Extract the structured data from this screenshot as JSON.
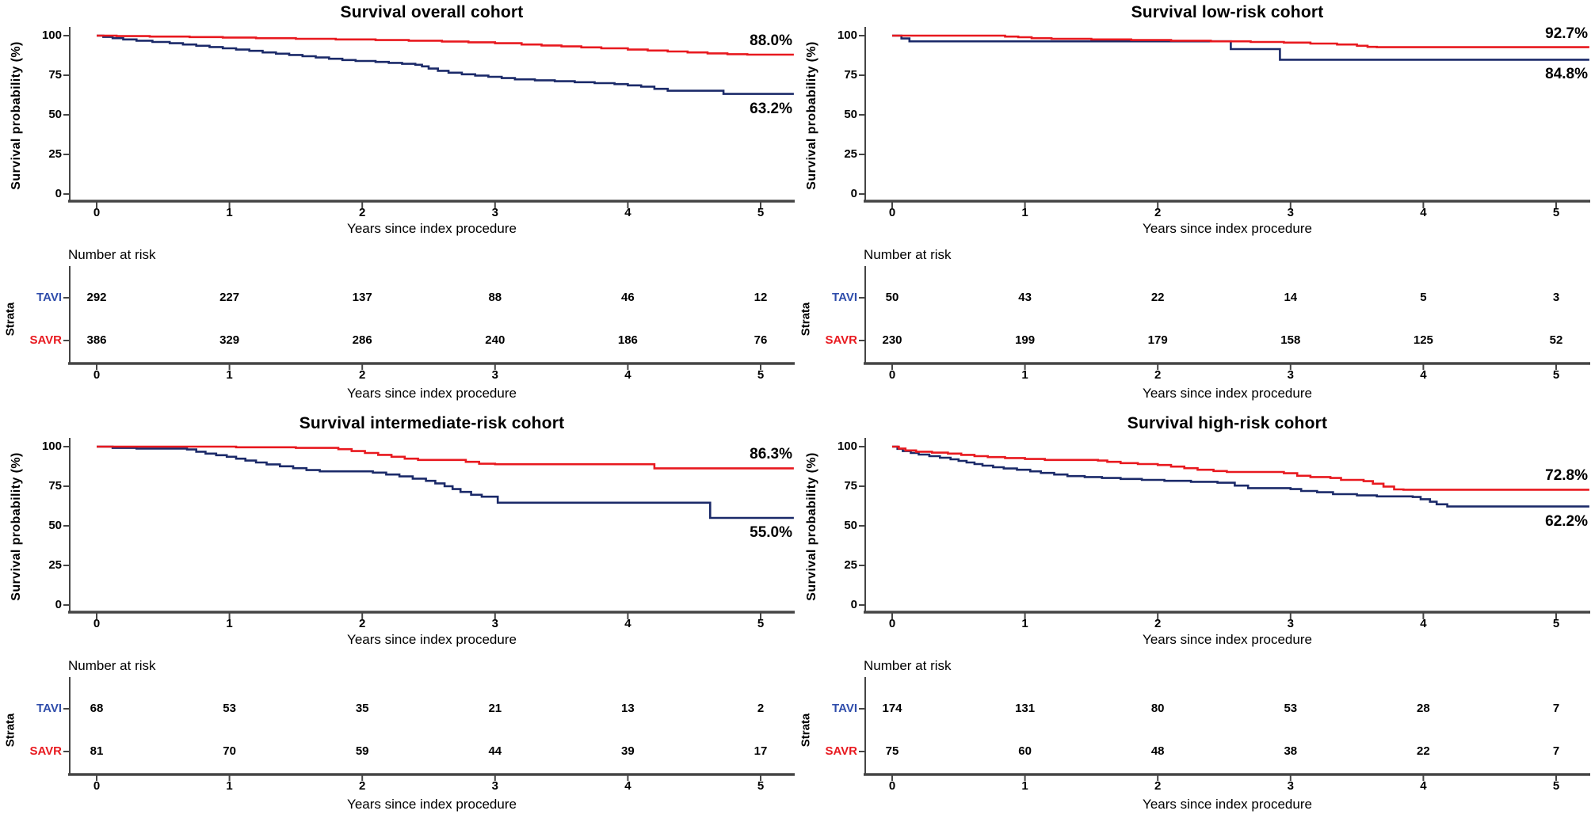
{
  "figure": {
    "background": "#ffffff"
  },
  "colors": {
    "savr": "#e8191f",
    "tavi_curve": "#1b2a69",
    "tavi_label": "#2f4dab",
    "axis": "#454545",
    "text": "#000000"
  },
  "axes": {
    "xlabel": "Years since index procedure",
    "ylabel": "Survival probability (%)",
    "x_ticks": [
      0,
      1,
      2,
      3,
      4,
      5
    ],
    "y_ticks": [
      0,
      25,
      50,
      75,
      100
    ],
    "xlim": [
      0,
      5.25
    ],
    "ylim": [
      0,
      100
    ],
    "grid": false
  },
  "risk_table": {
    "header": "Number at risk",
    "strata_label": "Strata"
  },
  "series_labels": {
    "tavi": "TAVI",
    "savr": "SAVR"
  },
  "chart_data": [
    {
      "type": "line",
      "title": "Survival overall cohort",
      "xlabel": "Years since index procedure",
      "ylabel": "Survival probability (%)",
      "end_labels": {
        "savr": "88.0%",
        "tavi": "63.2%"
      },
      "series": [
        {
          "name": "TAVI",
          "color_key": "tavi_curve",
          "points": [
            [
              0,
              100
            ],
            [
              0.05,
              99.2
            ],
            [
              0.12,
              98.4
            ],
            [
              0.2,
              97.6
            ],
            [
              0.3,
              96.8
            ],
            [
              0.42,
              96
            ],
            [
              0.55,
              95.2
            ],
            [
              0.65,
              94.4
            ],
            [
              0.75,
              93.6
            ],
            [
              0.85,
              92.8
            ],
            [
              0.95,
              92
            ],
            [
              1.05,
              91.2
            ],
            [
              1.15,
              90.4
            ],
            [
              1.25,
              89.4
            ],
            [
              1.35,
              88.6
            ],
            [
              1.45,
              87.8
            ],
            [
              1.55,
              87
            ],
            [
              1.65,
              86.2
            ],
            [
              1.75,
              85.4
            ],
            [
              1.85,
              84.6
            ],
            [
              1.95,
              84
            ],
            [
              2.1,
              83.4
            ],
            [
              2.2,
              82.8
            ],
            [
              2.3,
              82.2
            ],
            [
              2.4,
              81.6
            ],
            [
              2.45,
              80.6
            ],
            [
              2.5,
              79.2
            ],
            [
              2.57,
              77.8
            ],
            [
              2.65,
              76.6
            ],
            [
              2.75,
              75.6
            ],
            [
              2.85,
              74.8
            ],
            [
              2.95,
              74
            ],
            [
              3.05,
              73.2
            ],
            [
              3.15,
              72.4
            ],
            [
              3.3,
              71.8
            ],
            [
              3.45,
              71.2
            ],
            [
              3.6,
              70.6
            ],
            [
              3.75,
              70
            ],
            [
              3.9,
              69.4
            ],
            [
              4,
              68.6
            ],
            [
              4.1,
              67.8
            ],
            [
              4.2,
              66.4
            ],
            [
              4.3,
              65.2
            ],
            [
              4.72,
              63.2
            ],
            [
              5.25,
              63.2
            ]
          ]
        },
        {
          "name": "SAVR",
          "color_key": "savr",
          "points": [
            [
              0,
              100
            ],
            [
              0.15,
              99.7
            ],
            [
              0.4,
              99.4
            ],
            [
              0.7,
              99.1
            ],
            [
              0.95,
              98.8
            ],
            [
              1.2,
              98.4
            ],
            [
              1.5,
              98
            ],
            [
              1.8,
              97.6
            ],
            [
              2.1,
              97.2
            ],
            [
              2.35,
              96.8
            ],
            [
              2.6,
              96.3
            ],
            [
              2.8,
              95.8
            ],
            [
              3,
              95.2
            ],
            [
              3.2,
              94.4
            ],
            [
              3.35,
              93.8
            ],
            [
              3.5,
              93.2
            ],
            [
              3.65,
              92.6
            ],
            [
              3.8,
              92
            ],
            [
              4,
              91.2
            ],
            [
              4.15,
              90.6
            ],
            [
              4.3,
              90
            ],
            [
              4.45,
              89.4
            ],
            [
              4.6,
              88.8
            ],
            [
              4.75,
              88.3
            ],
            [
              4.9,
              88
            ],
            [
              5.25,
              88
            ]
          ]
        }
      ],
      "risk": [
        {
          "name": "TAVI",
          "values": [
            292,
            227,
            137,
            88,
            46,
            12
          ]
        },
        {
          "name": "SAVR",
          "values": [
            386,
            329,
            286,
            240,
            186,
            76
          ]
        }
      ]
    },
    {
      "type": "line",
      "title": "Survival low-risk cohort",
      "xlabel": "Years since index procedure",
      "ylabel": "Survival probability (%)",
      "end_labels": {
        "savr": "92.7%",
        "tavi": "84.8%"
      },
      "series": [
        {
          "name": "TAVI",
          "color_key": "tavi_curve",
          "points": [
            [
              0,
              100
            ],
            [
              0.07,
              98.2
            ],
            [
              0.13,
              96.4
            ],
            [
              2.55,
              91.5
            ],
            [
              2.92,
              84.8
            ],
            [
              5.25,
              84.8
            ]
          ]
        },
        {
          "name": "SAVR",
          "color_key": "savr",
          "points": [
            [
              0,
              100
            ],
            [
              0.78,
              100
            ],
            [
              0.85,
              99.4
            ],
            [
              0.95,
              99
            ],
            [
              1.05,
              98.4
            ],
            [
              1.2,
              98
            ],
            [
              1.5,
              97.6
            ],
            [
              1.8,
              97.2
            ],
            [
              2.1,
              96.8
            ],
            [
              2.4,
              96.4
            ],
            [
              2.7,
              96
            ],
            [
              2.95,
              95.6
            ],
            [
              3.15,
              95
            ],
            [
              3.35,
              94.4
            ],
            [
              3.5,
              93.6
            ],
            [
              3.58,
              92.9
            ],
            [
              3.65,
              92.7
            ],
            [
              5.25,
              92.7
            ]
          ]
        }
      ],
      "risk": [
        {
          "name": "TAVI",
          "values": [
            50,
            43,
            22,
            14,
            5,
            3
          ]
        },
        {
          "name": "SAVR",
          "values": [
            230,
            199,
            179,
            158,
            125,
            52
          ]
        }
      ]
    },
    {
      "type": "line",
      "title": "Survival intermediate-risk cohort",
      "xlabel": "Years since index procedure",
      "ylabel": "Survival probability (%)",
      "end_labels": {
        "savr": "86.3%",
        "tavi": "55.0%"
      },
      "series": [
        {
          "name": "TAVI",
          "color_key": "tavi_curve",
          "points": [
            [
              0,
              100
            ],
            [
              0.12,
              99.2
            ],
            [
              0.3,
              98.8
            ],
            [
              0.68,
              98.2
            ],
            [
              0.75,
              96.8
            ],
            [
              0.82,
              95.6
            ],
            [
              0.9,
              94.6
            ],
            [
              0.98,
              93.6
            ],
            [
              1.05,
              92.4
            ],
            [
              1.12,
              91.2
            ],
            [
              1.2,
              90
            ],
            [
              1.28,
              88.8
            ],
            [
              1.38,
              87.6
            ],
            [
              1.48,
              86.4
            ],
            [
              1.58,
              85.2
            ],
            [
              1.68,
              84.4
            ],
            [
              2.08,
              83.6
            ],
            [
              2.18,
              82.4
            ],
            [
              2.28,
              81.2
            ],
            [
              2.38,
              79.8
            ],
            [
              2.48,
              78.4
            ],
            [
              2.55,
              76.8
            ],
            [
              2.62,
              75
            ],
            [
              2.68,
              73.2
            ],
            [
              2.74,
              71.4
            ],
            [
              2.82,
              69.6
            ],
            [
              2.9,
              68.4
            ],
            [
              3.02,
              64.6
            ],
            [
              4.62,
              55
            ],
            [
              5.25,
              55
            ]
          ]
        },
        {
          "name": "SAVR",
          "color_key": "savr",
          "points": [
            [
              0,
              100
            ],
            [
              1.05,
              99.6
            ],
            [
              1.5,
              99.2
            ],
            [
              1.82,
              98.4
            ],
            [
              1.92,
              97.2
            ],
            [
              2.02,
              96
            ],
            [
              2.12,
              94.8
            ],
            [
              2.22,
              93.6
            ],
            [
              2.32,
              92.4
            ],
            [
              2.42,
              91.6
            ],
            [
              2.78,
              90.4
            ],
            [
              2.88,
              89.2
            ],
            [
              3,
              88.9
            ],
            [
              4.2,
              86.3
            ],
            [
              5.25,
              86.3
            ]
          ]
        }
      ],
      "risk": [
        {
          "name": "TAVI",
          "values": [
            68,
            53,
            35,
            21,
            13,
            2
          ]
        },
        {
          "name": "SAVR",
          "values": [
            81,
            70,
            59,
            44,
            39,
            17
          ]
        }
      ]
    },
    {
      "type": "line",
      "title": "Survival high-risk cohort",
      "xlabel": "Years since index procedure",
      "ylabel": "Survival probability (%)",
      "end_labels": {
        "savr": "72.8%",
        "tavi": "62.2%"
      },
      "series": [
        {
          "name": "TAVI",
          "color_key": "tavi_curve",
          "points": [
            [
              0,
              100
            ],
            [
              0.04,
              98.6
            ],
            [
              0.08,
              97.2
            ],
            [
              0.14,
              96
            ],
            [
              0.2,
              95
            ],
            [
              0.28,
              94
            ],
            [
              0.36,
              93
            ],
            [
              0.44,
              92
            ],
            [
              0.5,
              91
            ],
            [
              0.56,
              90
            ],
            [
              0.62,
              89
            ],
            [
              0.68,
              88
            ],
            [
              0.76,
              87
            ],
            [
              0.84,
              86.2
            ],
            [
              0.94,
              85.4
            ],
            [
              1.04,
              84.4
            ],
            [
              1.12,
              83.4
            ],
            [
              1.22,
              82.4
            ],
            [
              1.32,
              81.4
            ],
            [
              1.45,
              80.8
            ],
            [
              1.58,
              80.2
            ],
            [
              1.72,
              79.6
            ],
            [
              1.88,
              79
            ],
            [
              2.05,
              78.4
            ],
            [
              2.25,
              77.8
            ],
            [
              2.45,
              77.2
            ],
            [
              2.58,
              75.4
            ],
            [
              2.68,
              73.8
            ],
            [
              3,
              73.2
            ],
            [
              3.08,
              72
            ],
            [
              3.2,
              71.2
            ],
            [
              3.32,
              70
            ],
            [
              3.5,
              69.2
            ],
            [
              3.65,
              68.6
            ],
            [
              3.92,
              68.2
            ],
            [
              3.98,
              66.8
            ],
            [
              4.05,
              65.2
            ],
            [
              4.1,
              63.6
            ],
            [
              4.18,
              62.2
            ],
            [
              5.25,
              62.2
            ]
          ]
        },
        {
          "name": "SAVR",
          "color_key": "savr",
          "points": [
            [
              0,
              100
            ],
            [
              0.05,
              98.8
            ],
            [
              0.1,
              97.6
            ],
            [
              0.18,
              96.8
            ],
            [
              0.3,
              96.2
            ],
            [
              0.42,
              95.6
            ],
            [
              0.52,
              94.8
            ],
            [
              0.62,
              94
            ],
            [
              0.72,
              93.4
            ],
            [
              0.85,
              92.8
            ],
            [
              1,
              92.2
            ],
            [
              1.15,
              91.6
            ],
            [
              1.55,
              91.2
            ],
            [
              1.62,
              90.4
            ],
            [
              1.72,
              89.6
            ],
            [
              1.85,
              89
            ],
            [
              2,
              88.4
            ],
            [
              2.1,
              87.4
            ],
            [
              2.2,
              86.4
            ],
            [
              2.3,
              85.4
            ],
            [
              2.42,
              84.6
            ],
            [
              2.52,
              84
            ],
            [
              2.95,
              83.2
            ],
            [
              3.05,
              81.6
            ],
            [
              3.15,
              80.8
            ],
            [
              3.3,
              80.2
            ],
            [
              3.38,
              79
            ],
            [
              3.55,
              78.2
            ],
            [
              3.62,
              76.6
            ],
            [
              3.7,
              74.8
            ],
            [
              3.78,
              73
            ],
            [
              3.85,
              72.8
            ],
            [
              5.25,
              72.8
            ]
          ]
        }
      ],
      "risk": [
        {
          "name": "TAVI",
          "values": [
            174,
            131,
            80,
            53,
            28,
            7
          ]
        },
        {
          "name": "SAVR",
          "values": [
            75,
            60,
            48,
            38,
            22,
            7
          ]
        }
      ]
    }
  ]
}
